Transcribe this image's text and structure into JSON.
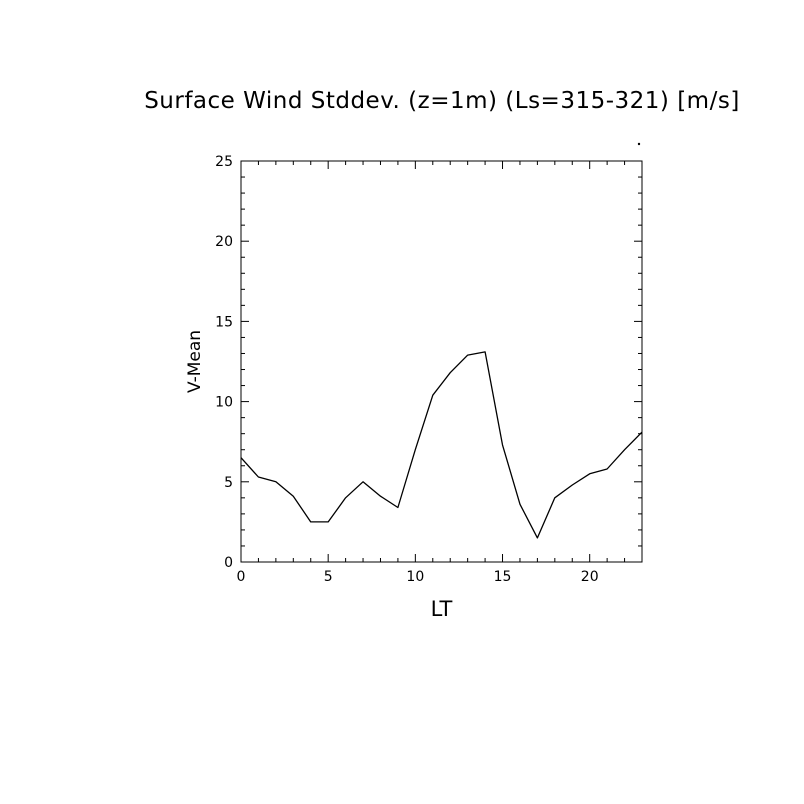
{
  "chart_data": {
    "type": "line",
    "title": "Surface Wind Stddev. (z=1m) (Ls=315-321) [m/s]",
    "xlabel": "LT",
    "ylabel": "V-Mean",
    "xlim": [
      0,
      23
    ],
    "ylim": [
      0,
      25
    ],
    "xticks": [
      0,
      5,
      10,
      15,
      20
    ],
    "xtick_labels": [
      "0",
      "5",
      "10",
      "15",
      "20"
    ],
    "yticks": [
      0,
      5,
      10,
      15,
      20,
      25
    ],
    "ytick_labels": [
      "0",
      "5",
      "10",
      "15",
      "20",
      "25"
    ],
    "grid": false,
    "series": [
      {
        "x": [
          0,
          1,
          2,
          3,
          4,
          5,
          6,
          7,
          8,
          9,
          10,
          11,
          12,
          13,
          14,
          15,
          16,
          17,
          18,
          19,
          20,
          21,
          22,
          23
        ],
        "values": [
          6.5,
          5.3,
          5.0,
          4.1,
          2.5,
          2.5,
          4.0,
          5.0,
          4.1,
          3.4,
          7.0,
          10.4,
          11.8,
          12.9,
          13.1,
          7.3,
          3.6,
          1.5,
          4.0,
          4.8,
          5.5,
          5.8,
          7.0,
          8.1
        ],
        "color": "#000000"
      }
    ]
  }
}
